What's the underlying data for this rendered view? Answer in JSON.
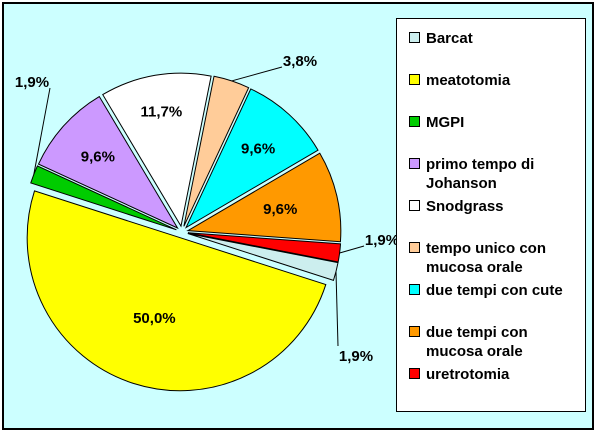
{
  "chart_data": {
    "type": "pie",
    "categories": [
      "Barcat",
      "meatotomia",
      "MGPI",
      "primo tempo di Johanson",
      "Snodgrass",
      "tempo unico con mucosa orale",
      "due tempi con cute",
      "due tempi con mucosa orale",
      "uretrotomia"
    ],
    "values": [
      1.9,
      50.0,
      1.9,
      9.6,
      11.7,
      3.8,
      9.6,
      9.6,
      1.9
    ],
    "data_labels": [
      "1,9%",
      "50,0%",
      "1,9%",
      "9,6%",
      "11,7%",
      "3,8%",
      "9,6%",
      "9,6%",
      "1,9%"
    ],
    "colors": [
      "#cceeee",
      "#ffff00",
      "#00cc00",
      "#cc99ff",
      "#ffffff",
      "#ffcc99",
      "#00ffff",
      "#ff9900",
      "#ff0000"
    ],
    "legend_position": "right",
    "exploded": true,
    "background": "#ccffff"
  },
  "legend": {
    "items": [
      "Barcat",
      "meatotomia",
      "MGPI",
      "primo tempo di Johanson",
      "Snodgrass",
      "tempo unico con mucosa orale",
      "due tempi con cute",
      "due tempi con mucosa orale",
      "uretrotomia"
    ]
  }
}
